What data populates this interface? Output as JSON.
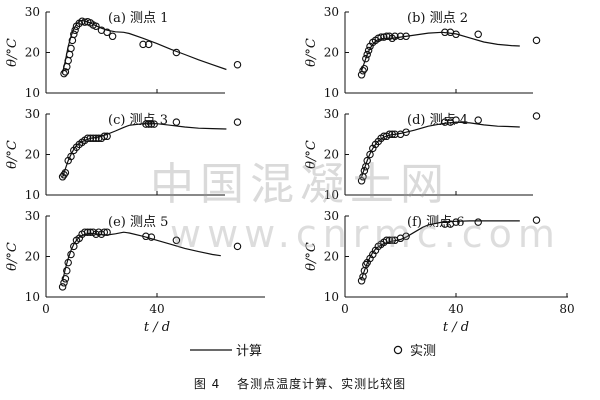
{
  "figure": {
    "caption_number": "图 4",
    "caption_text": "各测点温度计算、实测比较图"
  },
  "legend": {
    "calc_label": "计算",
    "meas_label": "实测"
  },
  "watermark": {
    "line1": "中国混凝土网",
    "line2": "www.cnrmc.com"
  },
  "chart_data": [
    {
      "type": "line",
      "panel_label": "(a) 测点 1",
      "xlabel": "t / d",
      "ylabel": "θ/°C",
      "xlim": [
        0,
        80
      ],
      "ylim": [
        10,
        30
      ],
      "xticks": [
        0,
        40,
        80
      ],
      "yticks": [
        10,
        20,
        30
      ],
      "show_xtick_labels": false,
      "series": [
        {
          "name": "计算",
          "kind": "line",
          "x": [
            6,
            7,
            8,
            9,
            10,
            11,
            12,
            13,
            14,
            16,
            18,
            20,
            22,
            25,
            28,
            30,
            35,
            40,
            45,
            50,
            55,
            60,
            65
          ],
          "y": [
            15,
            18,
            21.5,
            24,
            25.8,
            27,
            27.7,
            27.9,
            27.8,
            27.3,
            26.6,
            26,
            25.5,
            25.1,
            25,
            24.7,
            23.5,
            22.2,
            20.8,
            19.5,
            18.2,
            17,
            15.8
          ]
        },
        {
          "name": "实测",
          "kind": "scatter",
          "x": [
            6.5,
            7,
            7.5,
            8,
            8.5,
            9,
            9.5,
            10,
            10.5,
            11,
            12,
            13,
            14,
            15,
            16,
            17,
            18,
            20,
            22,
            24,
            35,
            37,
            47,
            69
          ],
          "y": [
            14.8,
            15.2,
            16.5,
            18,
            19.5,
            21,
            23,
            24.5,
            25.5,
            26.5,
            27.2,
            27.7,
            27.5,
            27.6,
            27.3,
            26.8,
            26.5,
            25.5,
            25,
            24,
            22,
            22,
            20,
            17
          ]
        }
      ]
    },
    {
      "type": "line",
      "panel_label": "(b) 测点 2",
      "xlabel": "t / d",
      "ylabel": "θ/°C",
      "xlim": [
        0,
        80
      ],
      "ylim": [
        10,
        30
      ],
      "xticks": [
        0,
        40,
        80
      ],
      "yticks": [
        10,
        20,
        30
      ],
      "show_xtick_labels": false,
      "series": [
        {
          "name": "计算",
          "kind": "line",
          "x": [
            6,
            7,
            8,
            9,
            10,
            11,
            12,
            14,
            16,
            18,
            20,
            25,
            30,
            35,
            40,
            45,
            50,
            55,
            60,
            63
          ],
          "y": [
            15.5,
            17.5,
            19.5,
            21,
            22,
            22.8,
            23.2,
            23.5,
            23.5,
            23.6,
            23.8,
            24.3,
            24.8,
            25,
            24.6,
            23.6,
            22.6,
            22,
            21.7,
            21.6
          ]
        },
        {
          "name": "实测",
          "kind": "scatter",
          "x": [
            6,
            6.5,
            7,
            7.5,
            8,
            8.5,
            9,
            10,
            11,
            12,
            13,
            14,
            15,
            16,
            17,
            18,
            20,
            22,
            36,
            38,
            40,
            48,
            69
          ],
          "y": [
            14.5,
            15.5,
            16,
            18.5,
            19.5,
            20.5,
            21.5,
            22.5,
            23,
            23.5,
            23.8,
            23.8,
            24,
            24,
            23.5,
            24,
            24,
            24,
            25,
            25,
            24.5,
            24.5,
            23
          ]
        }
      ]
    },
    {
      "type": "line",
      "panel_label": "(c) 测点 3",
      "xlabel": "t / d",
      "ylabel": "θ/°C",
      "xlim": [
        0,
        80
      ],
      "ylim": [
        10,
        30
      ],
      "xticks": [
        0,
        40,
        80
      ],
      "yticks": [
        10,
        20,
        30
      ],
      "show_xtick_labels": false,
      "series": [
        {
          "name": "计算",
          "kind": "line",
          "x": [
            6,
            7,
            8,
            9,
            10,
            11,
            12,
            14,
            16,
            18,
            20,
            22,
            25,
            28,
            30,
            35,
            40,
            45,
            50,
            55,
            60,
            65
          ],
          "y": [
            14.5,
            16.5,
            18.5,
            20,
            21.3,
            22.2,
            22.8,
            23.5,
            24,
            24.2,
            24.5,
            25,
            25.8,
            26.7,
            27.2,
            27.6,
            27.6,
            27.2,
            26.8,
            26.5,
            26.4,
            26.3
          ]
        },
        {
          "name": "实测",
          "kind": "scatter",
          "x": [
            6,
            6.5,
            7,
            8,
            9,
            10,
            11,
            12,
            13,
            14,
            15,
            16,
            17,
            18,
            19,
            20,
            21,
            22,
            36,
            37,
            38,
            39,
            47,
            69
          ],
          "y": [
            14.5,
            15,
            15.5,
            18.5,
            19.5,
            21,
            21.8,
            22.5,
            23,
            23.5,
            24,
            24,
            24,
            24,
            24,
            24,
            24.5,
            24.5,
            27.5,
            27.5,
            27.5,
            27.5,
            28,
            28
          ]
        }
      ]
    },
    {
      "type": "line",
      "panel_label": "(d) 测点 4",
      "xlabel": "t / d",
      "ylabel": "θ/°C",
      "xlim": [
        0,
        80
      ],
      "ylim": [
        10,
        30
      ],
      "xticks": [
        0,
        40,
        80
      ],
      "yticks": [
        10,
        20,
        30
      ],
      "show_xtick_labels": false,
      "series": [
        {
          "name": "计算",
          "kind": "line",
          "x": [
            6,
            7,
            8,
            9,
            10,
            11,
            12,
            14,
            16,
            18,
            20,
            22,
            25,
            30,
            35,
            40,
            45,
            50,
            55,
            60,
            63
          ],
          "y": [
            14.5,
            16.5,
            18.5,
            20.2,
            21.5,
            22.5,
            23.3,
            24.3,
            24.8,
            25,
            25.2,
            25.5,
            26,
            27,
            27.6,
            28,
            27.8,
            27.3,
            27,
            26.9,
            26.8
          ]
        },
        {
          "name": "实测",
          "kind": "scatter",
          "x": [
            6,
            6.5,
            7,
            7.5,
            8,
            9,
            10,
            11,
            12,
            13,
            14,
            15,
            16,
            17,
            18,
            20,
            22,
            36,
            38,
            40,
            48,
            69
          ],
          "y": [
            13.5,
            14.5,
            16,
            17,
            18.5,
            20,
            21.5,
            22.5,
            23.2,
            24,
            24.5,
            24.5,
            25,
            25,
            25,
            25,
            25.5,
            28,
            28,
            28.5,
            28.5,
            29.5
          ]
        }
      ]
    },
    {
      "type": "line",
      "panel_label": "(e) 测点 5",
      "xlabel": "t / d",
      "ylabel": "θ/°C",
      "xlim": [
        0,
        80
      ],
      "ylim": [
        10,
        30
      ],
      "xticks": [
        0,
        40,
        80
      ],
      "yticks": [
        10,
        20,
        30
      ],
      "show_xtick_labels": true,
      "series": [
        {
          "name": "计算",
          "kind": "line",
          "x": [
            6,
            7,
            8,
            9,
            10,
            11,
            12,
            14,
            16,
            18,
            20,
            22,
            25,
            28,
            30,
            35,
            40,
            45,
            50,
            55,
            60,
            63
          ],
          "y": [
            14,
            17,
            19.5,
            21.5,
            23,
            24,
            24.8,
            25.5,
            25.7,
            25.6,
            25.4,
            25.3,
            25.6,
            26,
            25.8,
            25,
            24,
            23,
            22,
            21.2,
            20.5,
            20.2
          ]
        },
        {
          "name": "实测",
          "kind": "scatter",
          "x": [
            6,
            6.5,
            7,
            7.5,
            8,
            9,
            10,
            11,
            12,
            13,
            14,
            15,
            16,
            17,
            18,
            19,
            20,
            21,
            22,
            36,
            38,
            47,
            69
          ],
          "y": [
            12.5,
            13.5,
            14.5,
            16.5,
            18.5,
            20.5,
            22.5,
            24,
            24.5,
            25.5,
            26,
            26,
            26,
            26,
            25.5,
            26,
            25.5,
            26,
            26,
            25,
            24.8,
            24,
            22.5
          ]
        }
      ]
    },
    {
      "type": "line",
      "panel_label": "(f) 测点 6",
      "xlabel": "t / d",
      "ylabel": "θ/°C",
      "xlim": [
        0,
        80
      ],
      "ylim": [
        10,
        30
      ],
      "xticks": [
        0,
        40,
        80
      ],
      "yticks": [
        10,
        20,
        30
      ],
      "show_xtick_labels": true,
      "series": [
        {
          "name": "计算",
          "kind": "line",
          "x": [
            6,
            7,
            8,
            9,
            10,
            11,
            12,
            14,
            16,
            18,
            20,
            22,
            25,
            28,
            30,
            35,
            40,
            45,
            50,
            55,
            60,
            63
          ],
          "y": [
            14.5,
            16.5,
            18.3,
            19.8,
            21,
            21.8,
            22.4,
            23.2,
            23.6,
            23.9,
            24.2,
            24.8,
            26,
            27.2,
            27.8,
            28.5,
            28.7,
            28.8,
            28.8,
            28.8,
            28.8,
            28.8
          ]
        },
        {
          "name": "实测",
          "kind": "scatter",
          "x": [
            6,
            6.5,
            7,
            7.5,
            8,
            9,
            10,
            11,
            12,
            13,
            14,
            15,
            16,
            17,
            18,
            20,
            22,
            36,
            38,
            40,
            48,
            69
          ],
          "y": [
            14,
            15,
            16.5,
            18,
            18.5,
            19.5,
            20.5,
            21.5,
            22.5,
            23,
            23.5,
            24,
            24,
            24,
            24,
            24.5,
            25,
            28,
            28,
            28.5,
            28.5,
            29
          ]
        }
      ]
    }
  ]
}
